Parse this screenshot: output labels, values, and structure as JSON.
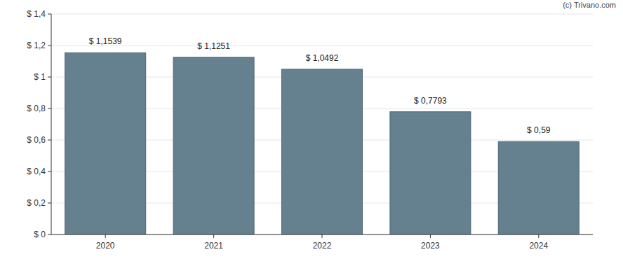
{
  "chart_data": {
    "type": "bar",
    "annotation": "(c) Trivano.com",
    "categories": [
      "2020",
      "2021",
      "2022",
      "2023",
      "2024"
    ],
    "values": [
      1.1539,
      1.1251,
      1.0492,
      0.7793,
      0.59
    ],
    "value_labels": [
      "$ 1,1539",
      "$ 1,1251",
      "$ 1,0492",
      "$ 0,7793",
      "$ 0,59"
    ],
    "color": "#65808f",
    "ylim": [
      0,
      1.4
    ],
    "yticks": [
      {
        "value": 0,
        "label": "$ 0"
      },
      {
        "value": 0.2,
        "label": "$ 0,2"
      },
      {
        "value": 0.4,
        "label": "$ 0,4"
      },
      {
        "value": 0.6,
        "label": "$ 0,6"
      },
      {
        "value": 0.8,
        "label": "$ 0,8"
      },
      {
        "value": 1,
        "label": "$ 1"
      },
      {
        "value": 1.2,
        "label": "$ 1,2"
      },
      {
        "value": 1.4,
        "label": "$ 1,4"
      }
    ],
    "grid": true,
    "data_labels": true
  }
}
